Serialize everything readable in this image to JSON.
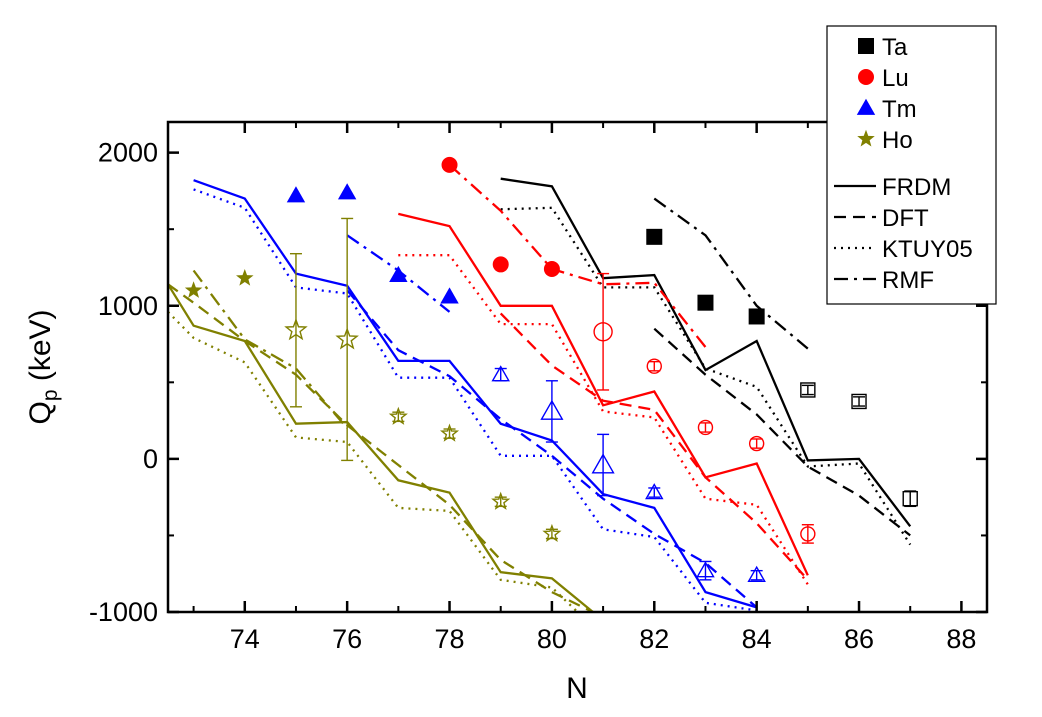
{
  "chart_data": {
    "type": "scatter",
    "title": "",
    "xlabel": "N",
    "ylabel_main": "Q",
    "ylabel_sub": "p",
    "ylabel_unit": " (keV)",
    "xlim": [
      72.5,
      88.5
    ],
    "ylim": [
      -1000,
      2200
    ],
    "xticks": [
      74,
      76,
      78,
      80,
      82,
      84,
      86,
      88
    ],
    "yticks": [
      -1000,
      0,
      1000,
      2000
    ],
    "xtick_labels": [
      "74",
      "76",
      "78",
      "80",
      "82",
      "84",
      "86",
      "88"
    ],
    "ytick_labels": [
      "-1000",
      "0",
      "1000",
      "2000"
    ],
    "legend_position": "top-right",
    "legend": {
      "markers": [
        {
          "label": "Ta",
          "shape": "square",
          "color": "#000000"
        },
        {
          "label": "Lu",
          "shape": "circle",
          "color": "#ff0000"
        },
        {
          "label": "Tm",
          "shape": "triangle",
          "color": "#0000ff"
        },
        {
          "label": "Ho",
          "shape": "star",
          "color": "#808000"
        }
      ],
      "lines": [
        {
          "label": "FRDM",
          "dash": "solid"
        },
        {
          "label": "DFT",
          "dash": "dash"
        },
        {
          "label": "KTUY05",
          "dash": "dot"
        },
        {
          "label": "RMF",
          "dash": "dashdot"
        }
      ]
    },
    "elements": [
      {
        "element": "Ta",
        "color": "#000000",
        "marker": "square",
        "experimental": [
          {
            "x": 82,
            "y": 1450
          },
          {
            "x": 83,
            "y": 1020
          },
          {
            "x": 84,
            "y": 930
          }
        ],
        "estimated": [
          {
            "x": 85,
            "y": 450,
            "err": 30
          },
          {
            "x": 86,
            "y": 375,
            "err": 30
          },
          {
            "x": 87,
            "y": -260,
            "err": 50
          }
        ],
        "models": {
          "FRDM": {
            "x": [
              79,
              80,
              81,
              82,
              83,
              84,
              85,
              86,
              87
            ],
            "y": [
              1830,
              1780,
              1180,
              1200,
              580,
              770,
              -10,
              0,
              -440
            ]
          },
          "DFT": {
            "x": [
              82,
              83,
              84,
              85,
              86,
              87
            ],
            "y": [
              850,
              550,
              290,
              -50,
              -240,
              -500
            ]
          },
          "KTUY05": {
            "x": [
              79,
              80,
              81,
              82,
              83,
              84,
              85,
              86,
              87
            ],
            "y": [
              1630,
              1640,
              1120,
              1120,
              590,
              470,
              -50,
              -30,
              -560
            ]
          },
          "RMF": {
            "x": [
              82,
              83,
              84,
              85
            ],
            "y": [
              1700,
              1460,
              1000,
              720
            ]
          }
        }
      },
      {
        "element": "Lu",
        "color": "#ff0000",
        "marker": "circle",
        "experimental": [
          {
            "x": 78,
            "y": 1920
          },
          {
            "x": 79,
            "y": 1270
          },
          {
            "x": 80,
            "y": 1240
          }
        ],
        "estimated": [
          {
            "x": 81,
            "y": 830,
            "err": 380
          },
          {
            "x": 82,
            "y": 605,
            "err": 30
          },
          {
            "x": 83,
            "y": 205,
            "err": 30
          },
          {
            "x": 84,
            "y": 100,
            "err": 30
          },
          {
            "x": 85,
            "y": -490,
            "err": 60
          }
        ],
        "models": {
          "FRDM": {
            "x": [
              77,
              78,
              79,
              80,
              81,
              82,
              83,
              84,
              85
            ],
            "y": [
              1600,
              1520,
              1000,
              1000,
              350,
              440,
              -120,
              -30,
              -760
            ]
          },
          "DFT": {
            "x": [
              79,
              80,
              81,
              82,
              83,
              84,
              85
            ],
            "y": [
              950,
              610,
              380,
              320,
              -120,
              -420,
              -790
            ]
          },
          "KTUY05": {
            "x": [
              77,
              78,
              79,
              80,
              81,
              82,
              83,
              84,
              85
            ],
            "y": [
              1330,
              1330,
              880,
              880,
              310,
              270,
              -260,
              -300,
              -820
            ]
          },
          "RMF": {
            "x": [
              78,
              79,
              80,
              81,
              82,
              83
            ],
            "y": [
              1920,
              1620,
              1240,
              1140,
              1150,
              730
            ]
          }
        }
      },
      {
        "element": "Tm",
        "color": "#0000ff",
        "marker": "triangle",
        "experimental": [
          {
            "x": 75,
            "y": 1720
          },
          {
            "x": 76,
            "y": 1740
          },
          {
            "x": 77,
            "y": 1200
          },
          {
            "x": 78,
            "y": 1060
          }
        ],
        "estimated": [
          {
            "x": 79,
            "y": 550,
            "err": 40
          },
          {
            "x": 80,
            "y": 310,
            "err": 200
          },
          {
            "x": 81,
            "y": -40,
            "err": 200
          },
          {
            "x": 82,
            "y": -220,
            "err": 30
          },
          {
            "x": 83,
            "y": -730,
            "err": 60
          },
          {
            "x": 84,
            "y": -760,
            "err": 30
          }
        ],
        "models": {
          "FRDM": {
            "x": [
              73,
              74,
              75,
              76,
              77,
              78,
              79,
              80,
              81,
              82,
              83,
              84
            ],
            "y": [
              1820,
              1700,
              1210,
              1130,
              640,
              640,
              230,
              120,
              -230,
              -320,
              -870,
              -970
            ]
          },
          "DFT": {
            "x": [
              76,
              77,
              78,
              79,
              80,
              81,
              82,
              83,
              84
            ],
            "y": [
              1100,
              710,
              540,
              260,
              20,
              -260,
              -490,
              -680,
              -970
            ]
          },
          "KTUY05": {
            "x": [
              73,
              74,
              75,
              76,
              77,
              78,
              79,
              80,
              81,
              82,
              83,
              84
            ],
            "y": [
              1760,
              1640,
              1120,
              1080,
              530,
              530,
              20,
              20,
              -460,
              -510,
              -940,
              -990
            ]
          },
          "RMF": {
            "x": [
              76,
              77,
              78
            ],
            "y": [
              1460,
              1230,
              960
            ]
          }
        }
      },
      {
        "element": "Ho",
        "color": "#808000",
        "marker": "star",
        "experimental": [
          {
            "x": 73,
            "y": 1100
          },
          {
            "x": 74,
            "y": 1180
          }
        ],
        "estimated": [
          {
            "x": 75,
            "y": 840,
            "err": 500
          },
          {
            "x": 76,
            "y": 780,
            "err": 790
          },
          {
            "x": 77,
            "y": 275,
            "err": 30
          },
          {
            "x": 78,
            "y": 165,
            "err": 30
          },
          {
            "x": 79,
            "y": -280,
            "err": 30
          },
          {
            "x": 80,
            "y": -490,
            "err": 30
          }
        ],
        "models": {
          "FRDM": {
            "x": [
              72.5,
              73,
              74,
              75,
              76,
              77,
              78,
              79,
              80,
              80.8
            ],
            "y": [
              1140,
              870,
              770,
              230,
              240,
              -140,
              -220,
              -740,
              -780,
              -1000
            ]
          },
          "DFT": {
            "x": [
              72.5,
              73,
              74,
              75,
              76,
              77,
              78,
              79,
              80,
              80.8
            ],
            "y": [
              1140,
              1020,
              770,
              550,
              220,
              -40,
              -300,
              -660,
              -870,
              -1000
            ]
          },
          "KTUY05": {
            "x": [
              72.5,
              73,
              74,
              75,
              76,
              77,
              78,
              79,
              80,
              80.5
            ],
            "y": [
              960,
              790,
              630,
              140,
              110,
              -320,
              -340,
              -790,
              -840,
              -1000
            ]
          },
          "RMF": {
            "x": [
              73,
              74,
              75,
              76
            ],
            "y": [
              1230,
              780,
              590,
              200
            ]
          }
        }
      }
    ]
  }
}
